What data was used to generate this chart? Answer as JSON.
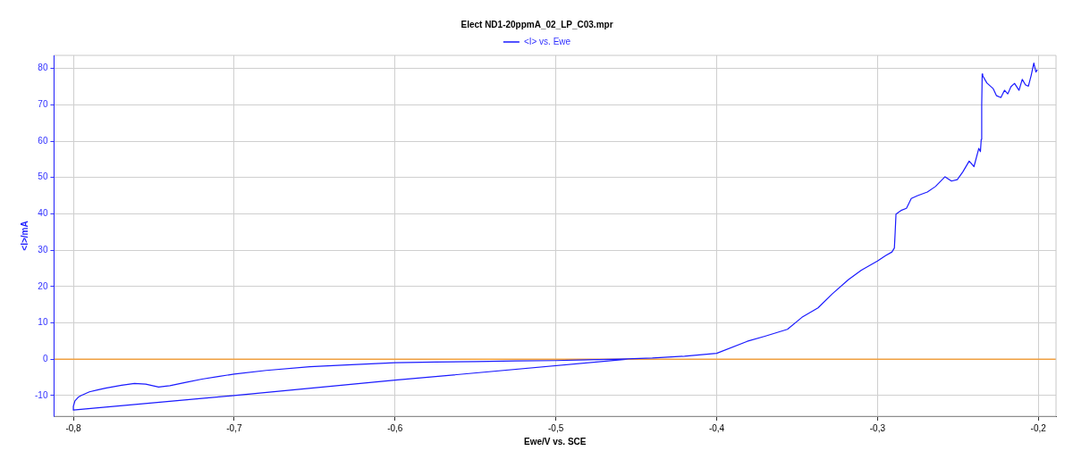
{
  "chart_data": {
    "type": "line",
    "title": "Elect ND1-20ppmA_02_LP_C03.mpr",
    "xlabel": "Ewe/V vs. SCE",
    "ylabel": "<I>/mA",
    "xlim": [
      -0.812,
      -0.189
    ],
    "ylim": [
      -15.7,
      83.6
    ],
    "xticks": [
      {
        "value": -0.8,
        "label": "-0,8"
      },
      {
        "value": -0.7,
        "label": "-0,7"
      },
      {
        "value": -0.6,
        "label": "-0,6"
      },
      {
        "value": -0.5,
        "label": "-0,5"
      },
      {
        "value": -0.4,
        "label": "-0,4"
      },
      {
        "value": -0.3,
        "label": "-0,3"
      },
      {
        "value": -0.2,
        "label": "-0,2"
      }
    ],
    "yticks": [
      -10,
      0,
      10,
      20,
      30,
      40,
      50,
      60,
      70,
      80
    ],
    "grid": true,
    "legend": "top",
    "marker": "none",
    "line_style": "solid",
    "ref_lines": [
      {
        "axis": "y",
        "value": 0,
        "color": "#f0a040"
      }
    ],
    "series": [
      {
        "name": "<I> vs. Ewe",
        "color": "#1a1aff",
        "x": [
          -0.455,
          -0.6,
          -0.7,
          -0.8,
          -0.8,
          -0.799,
          -0.797,
          -0.795,
          -0.79,
          -0.785,
          -0.78,
          -0.77,
          -0.762,
          -0.755,
          -0.747,
          -0.74,
          -0.73,
          -0.72,
          -0.71,
          -0.7,
          -0.68,
          -0.653,
          -0.63,
          -0.6,
          -0.575,
          -0.55,
          -0.525,
          -0.5,
          -0.48,
          -0.46,
          -0.44,
          -0.42,
          -0.4,
          -0.381,
          -0.37,
          -0.356,
          -0.347,
          -0.337,
          -0.328,
          -0.318,
          -0.31,
          -0.3,
          -0.295,
          -0.291,
          -0.2895,
          -0.289,
          -0.2885,
          -0.285,
          -0.282,
          -0.279,
          -0.275,
          -0.269,
          -0.264,
          -0.258,
          -0.254,
          -0.2504,
          -0.247,
          -0.243,
          -0.24,
          -0.237,
          -0.236,
          -0.2355,
          -0.2352,
          -0.2349,
          -0.2346,
          -0.232,
          -0.228,
          -0.226,
          -0.2233,
          -0.221,
          -0.219,
          -0.217,
          -0.2148,
          -0.212,
          -0.21,
          -0.208,
          -0.2062,
          -0.2045,
          -0.2028,
          -0.2015,
          -0.2006
        ],
        "values": [
          0,
          -5.8,
          -10,
          -14,
          -13,
          -11.5,
          -10.5,
          -10,
          -9,
          -8.5,
          -8,
          -7.2,
          -6.7,
          -6.9,
          -7.7,
          -7.3,
          -6.4,
          -5.5,
          -4.8,
          -4.1,
          -3.1,
          -2.1,
          -1.6,
          -1,
          -0.8,
          -0.7,
          -0.5,
          -0.4,
          -0.2,
          0,
          0.3,
          0.8,
          1.6,
          4.9,
          6.3,
          8.2,
          11.5,
          14.1,
          18,
          21.9,
          24.5,
          27,
          28.5,
          29.5,
          30.6,
          35,
          39.9,
          41,
          41.5,
          44.2,
          45,
          46,
          47.5,
          50.2,
          49,
          49.4,
          51.5,
          54.5,
          53,
          58,
          57.1,
          60.5,
          70,
          78.5,
          78,
          76,
          74.4,
          72.5,
          72,
          74,
          73,
          75,
          75.9,
          74,
          77,
          75.5,
          75.1,
          78,
          81.5,
          79,
          79.7
        ]
      }
    ]
  }
}
